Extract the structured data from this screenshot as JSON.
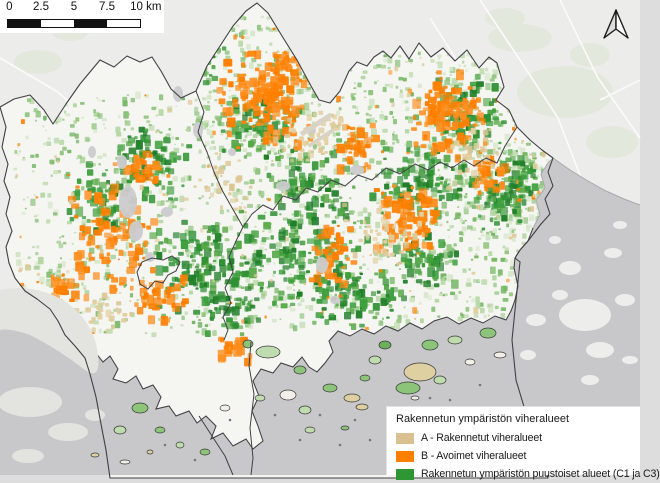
{
  "scalebar": {
    "ticks": [
      "0",
      "2.5",
      "5",
      "7.5",
      "10"
    ],
    "unit": "km"
  },
  "legend": {
    "title": "Rakennetun ympäristön viheralueet",
    "items": [
      {
        "label": "A - Rakennetut viheralueet",
        "color": "#D9C18F"
      },
      {
        "label": "B - Avoimet viheralueet",
        "color": "#FF7F00"
      },
      {
        "label": "Rakennetun ympäristön puustoiset alueet (C1 ja C3)",
        "color": "#2E9632"
      }
    ]
  },
  "colors": {
    "sea": "#C8C8CB",
    "land_outside": "#ECECEA",
    "land_region": "#F5F5F2",
    "boundary": "#404044",
    "coast_outside": "#A9A9AC",
    "pale_island": "#E3E3E0",
    "pale_green": "#E3E8DC",
    "gray_patch": "#CFCFD3",
    "lake": "#CBCBCE",
    "road": "#FBFBF9",
    "orange": "#FF7F00",
    "orange_alt": "#FF8D1C",
    "tan": "#DCC693",
    "tan_alt": "#E2CFA0",
    "green_dark": "#1F7E28",
    "green_mid": "#2E9132",
    "green_mid2": "#3FA03E",
    "green_soft": "#57A847",
    "wash1": "#D3E5C6",
    "wash2": "#B4D6A2",
    "wash3": "#93C681",
    "wash4": "#74B663",
    "island1": "#BFDCAE",
    "island2": "#8CC47A",
    "island3": "#F1EFE8",
    "island4": "#DFD0A2",
    "island5": "#6BB05A",
    "islet_dark": "#77777A",
    "scalebar_dark": "#111111",
    "scalebar_light": "#FFFFFF",
    "arrow_shade": "#DCDCDC",
    "arrow_light": "#FFFFFF"
  }
}
